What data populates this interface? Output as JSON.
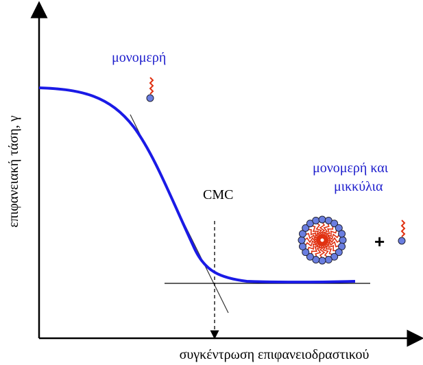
{
  "axes": {
    "y_label": "επιφανειακή τάση, γ",
    "x_label": "συγκέντρωση επιφανειοδραστικού"
  },
  "labels": {
    "monomers": "μονομερή",
    "cmc": "CMC",
    "monomers_and": "μονομερή και",
    "micelles": "μικκύλια",
    "plus": "+"
  }
}
